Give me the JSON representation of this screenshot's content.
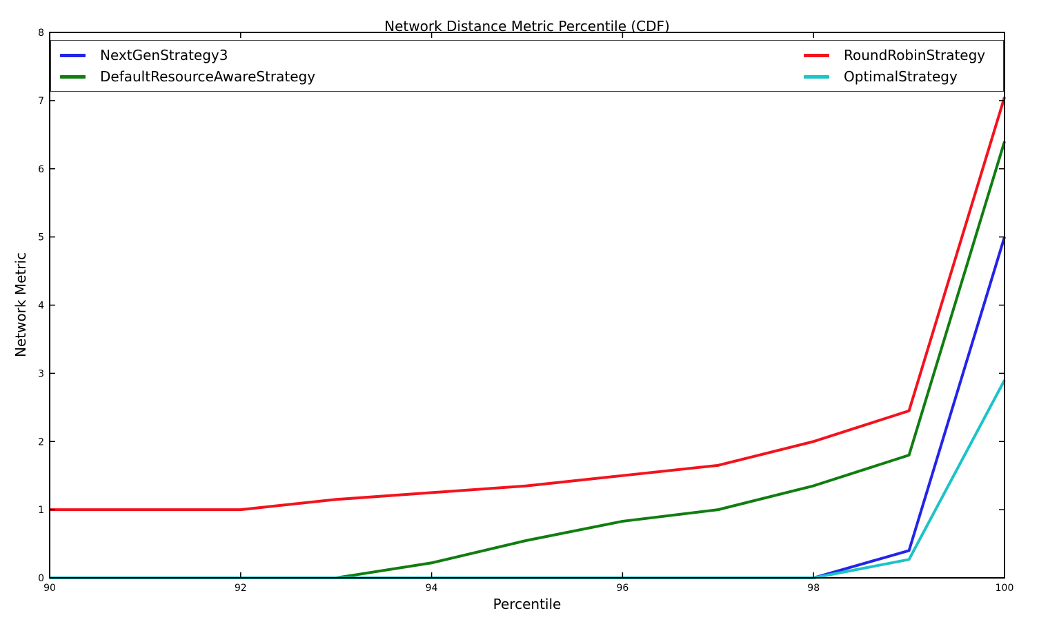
{
  "chart_data": {
    "type": "line",
    "title": "Network Distance Metric Percentile (CDF)",
    "xlabel": "Percentile",
    "ylabel": "Network Metric",
    "xlim": [
      90,
      100
    ],
    "ylim": [
      0,
      8
    ],
    "xticks": [
      90,
      92,
      94,
      96,
      98,
      100
    ],
    "yticks": [
      0,
      1,
      2,
      3,
      4,
      5,
      6,
      7,
      8
    ],
    "grid": false,
    "legend_position": "top-inside-expanded-two-columns",
    "x": [
      90,
      91,
      92,
      93,
      94,
      95,
      96,
      97,
      98,
      99,
      100
    ],
    "series": [
      {
        "name": "NextGenStrategy3",
        "color": "#2424e8",
        "legend_column": 0,
        "values": [
          0,
          0,
          0,
          0,
          0,
          0,
          0,
          0,
          0,
          0.4,
          5.0
        ]
      },
      {
        "name": "DefaultResourceAwareStrategy",
        "color": "#117d11",
        "legend_column": 0,
        "values": [
          0,
          0,
          0,
          0,
          0.22,
          0.55,
          0.83,
          1.0,
          1.35,
          1.8,
          6.4
        ]
      },
      {
        "name": "RoundRobinStrategy",
        "color": "#f2131d",
        "legend_column": 1,
        "values": [
          1.0,
          1.0,
          1.0,
          1.15,
          1.25,
          1.35,
          1.5,
          1.65,
          2.0,
          2.45,
          7.05
        ]
      },
      {
        "name": "OptimalStrategy",
        "color": "#1cc3c7",
        "legend_column": 1,
        "values": [
          0,
          0,
          0,
          0,
          0,
          0,
          0,
          0,
          0,
          0.27,
          2.9
        ]
      }
    ],
    "style": {
      "spine_color": "#000000",
      "tick_color": "#000000",
      "line_width": 4,
      "tick_font_size": 14
    }
  }
}
